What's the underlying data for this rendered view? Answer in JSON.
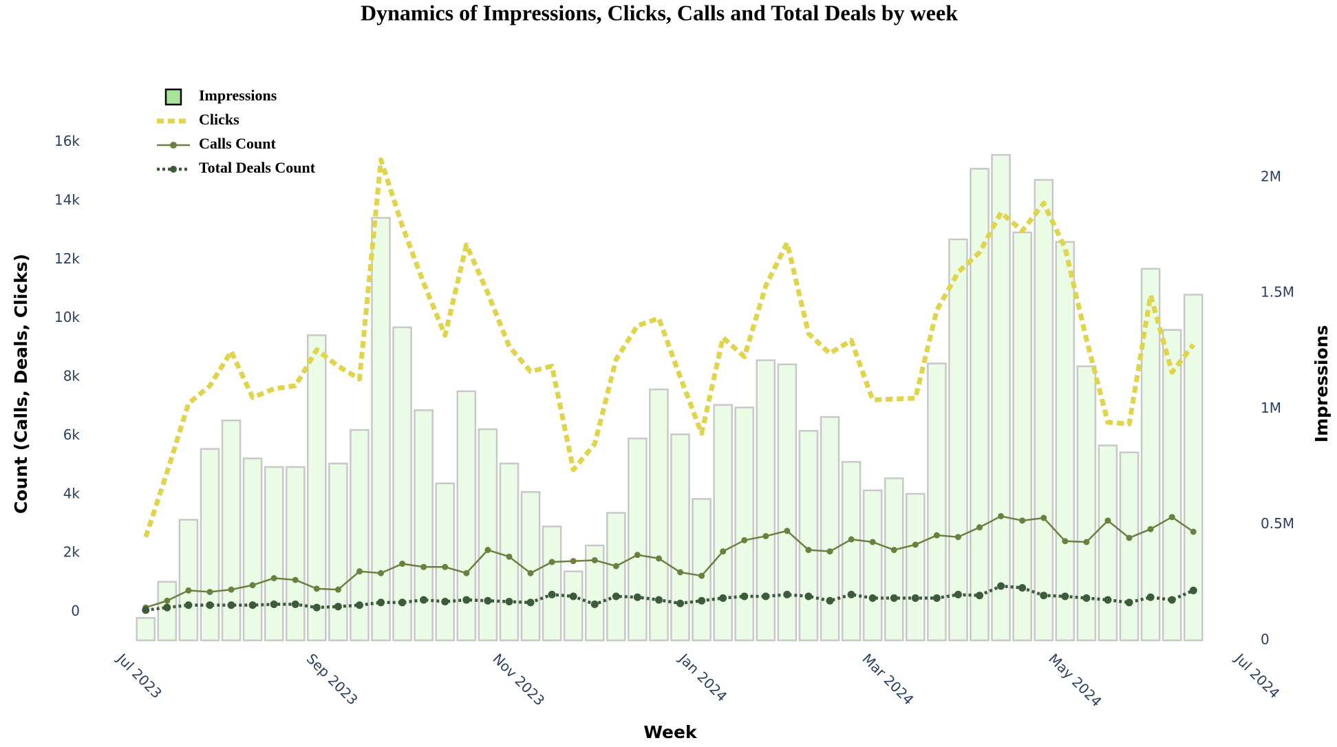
{
  "chart_data": {
    "type": "bar",
    "title": "Dynamics of Impressions, Clicks, Calls and Total Deals by week",
    "x_label": "Week",
    "y_label": "Count (Calls, Deals, Clicks)",
    "y2_label": "Impressions",
    "x": [
      "2023-07-03",
      "2023-07-10",
      "2023-07-17",
      "2023-07-24",
      "2023-07-31",
      "2023-08-07",
      "2023-08-14",
      "2023-08-21",
      "2023-08-28",
      "2023-09-04",
      "2023-09-11",
      "2023-09-18",
      "2023-09-25",
      "2023-10-02",
      "2023-10-09",
      "2023-10-16",
      "2023-10-23",
      "2023-10-30",
      "2023-11-06",
      "2023-11-13",
      "2023-11-20",
      "2023-11-27",
      "2023-12-04",
      "2023-12-11",
      "2023-12-18",
      "2023-12-25",
      "2024-01-01",
      "2024-01-08",
      "2024-01-15",
      "2024-01-22",
      "2024-01-29",
      "2024-02-05",
      "2024-02-12",
      "2024-02-19",
      "2024-02-26",
      "2024-03-04",
      "2024-03-11",
      "2024-03-18",
      "2024-03-25",
      "2024-04-01",
      "2024-04-08",
      "2024-04-15",
      "2024-04-22",
      "2024-04-29",
      "2024-05-06",
      "2024-05-13",
      "2024-05-20",
      "2024-05-27",
      "2024-06-03",
      "2024-06-10"
    ],
    "series": [
      {
        "name": "Impressions",
        "type": "bar",
        "axis": "y2",
        "color": "#eafbe6",
        "line_color": "#c8c8c8",
        "values": [
          97000,
          253000,
          521000,
          827000,
          950000,
          786000,
          749000,
          749000,
          1318000,
          764000,
          909000,
          1825000,
          1352000,
          994000,
          678000,
          1076000,
          912000,
          764000,
          641000,
          492000,
          298000,
          410000,
          551000,
          872000,
          1084000,
          890000,
          611000,
          1017000,
          1006000,
          1210000,
          1192000,
          905000,
          965000,
          771000,
          648000,
          700000,
          633000,
          1196000,
          1732000,
          2037000,
          2097000,
          1762000,
          1989000,
          1721000,
          1184000,
          842000,
          812000,
          1605000,
          1341000,
          1493000
        ]
      },
      {
        "name": "Clicks",
        "type": "line",
        "dash": "dash",
        "color": "#e0d44a",
        "values": [
          2550,
          4760,
          7100,
          7700,
          8870,
          7300,
          7600,
          7700,
          8930,
          8370,
          7930,
          15400,
          13150,
          11200,
          9420,
          12500,
          10860,
          9040,
          8190,
          8370,
          4840,
          5720,
          8600,
          9750,
          10000,
          8000,
          6080,
          9340,
          8690,
          11100,
          12570,
          9480,
          8800,
          9250,
          7220,
          7250,
          7280,
          10280,
          11570,
          12240,
          13600,
          12980,
          13920,
          12390,
          9280,
          6460,
          6400,
          10780,
          8160,
          9100
        ]
      },
      {
        "name": "Calls Count",
        "type": "line",
        "dash": "solid",
        "markers": true,
        "color": "#6b8040",
        "values": [
          150,
          380,
          730,
          680,
          760,
          910,
          1150,
          1090,
          790,
          760,
          1380,
          1320,
          1640,
          1530,
          1530,
          1320,
          2110,
          1880,
          1320,
          1700,
          1730,
          1760,
          1560,
          1940,
          1820,
          1350,
          1230,
          2060,
          2440,
          2580,
          2760,
          2110,
          2060,
          2470,
          2380,
          2110,
          2290,
          2610,
          2550,
          2880,
          3260,
          3110,
          3200,
          2410,
          2380,
          3110,
          2520,
          2820,
          3230,
          2730
        ]
      },
      {
        "name": "Total Deals Count",
        "type": "line",
        "dash": "dot",
        "markers": true,
        "color": "#3d5a3a",
        "values": [
          60,
          150,
          230,
          230,
          230,
          230,
          260,
          260,
          150,
          180,
          230,
          320,
          320,
          410,
          350,
          410,
          380,
          350,
          320,
          590,
          530,
          260,
          530,
          500,
          410,
          290,
          380,
          470,
          530,
          530,
          590,
          530,
          380,
          590,
          470,
          470,
          470,
          470,
          590,
          560,
          880,
          820,
          560,
          530,
          470,
          410,
          320,
          500,
          410,
          730
        ]
      }
    ],
    "xlim": [
      "2023-06-29",
      "2024-06-14"
    ],
    "xticks": [
      {
        "value": "2023-07-01",
        "label": "Jul 2023"
      },
      {
        "value": "2023-09-01",
        "label": "Sep 2023"
      },
      {
        "value": "2023-11-01",
        "label": "Nov 2023"
      },
      {
        "value": "2024-01-01",
        "label": "Jan 2024"
      },
      {
        "value": "2024-03-01",
        "label": "Mar 2024"
      },
      {
        "value": "2024-05-01",
        "label": "May 2024"
      },
      {
        "value": "2024-07-01",
        "label": "Jul 2024"
      }
    ],
    "ylim": [
      -970,
      16740
    ],
    "yticks": [
      0,
      {
        "value": 2000,
        "label": "2k"
      },
      {
        "value": 4000,
        "label": "4k"
      },
      {
        "value": 6000,
        "label": "6k"
      },
      {
        "value": 8000,
        "label": "8k"
      },
      {
        "value": 10000,
        "label": "10k"
      },
      {
        "value": 12000,
        "label": "12k"
      },
      {
        "value": 14000,
        "label": "14k"
      },
      {
        "value": 16000,
        "label": "16k"
      }
    ],
    "y2lim": [
      0,
      2246000
    ],
    "y2ticks": [
      0,
      {
        "value": 500000,
        "label": "0.5M"
      },
      {
        "value": 1000000,
        "label": "1M"
      },
      {
        "value": 1500000,
        "label": "1.5M"
      },
      {
        "value": 2000000,
        "label": "2M"
      }
    ],
    "grid": false,
    "legend": "top-left"
  }
}
